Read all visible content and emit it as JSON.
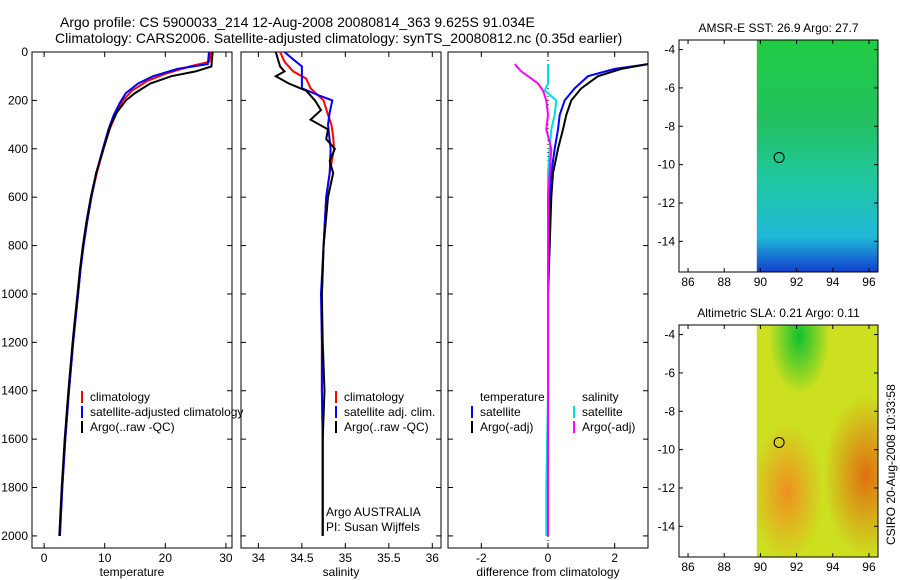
{
  "title_line1": "Argo profile: CS 5900033_214 12-Aug-2008 20080814_363 9.625S 91.034E",
  "title_line2": "Climatology: CARS2006. Satellite-adjusted climatology: synTS_20080812.nc (0.35d earlier)",
  "footer": {
    "argo_line1": "Argo AUSTRALIA",
    "argo_line2": "PI: Susan Wijffels",
    "csiro_stamp": "CSIRO 20-Aug-2008 10:33:58"
  },
  "colors": {
    "climatology": "#ff0000",
    "satellite": "#0000ff",
    "argo": "#000000",
    "salinity_sat": "#00dddd",
    "salinity_argo": "#ff00ff"
  },
  "chart_data": [
    {
      "id": "temperature",
      "type": "line",
      "xlabel": "temperature",
      "xlim": [
        -2,
        31
      ],
      "ylim": [
        0,
        2050
      ],
      "xticks": [
        0,
        10,
        20,
        30
      ],
      "yticks": [
        0,
        200,
        400,
        600,
        800,
        1000,
        1200,
        1400,
        1600,
        1800,
        2000
      ],
      "legend": [
        "climatology",
        "satellite-adjusted climatology",
        "Argo(..raw -QC)"
      ],
      "series": [
        {
          "name": "climatology",
          "color": "#ff0000",
          "depth": [
            0,
            40,
            60,
            90,
            120,
            160,
            200,
            260,
            320,
            400,
            500,
            600,
            700,
            800,
            900,
            1000,
            1100,
            1200,
            1400,
            1600,
            1800,
            2000
          ],
          "values": [
            27.5,
            27.3,
            24,
            20,
            17,
            14.5,
            13,
            11.8,
            10.8,
            9.8,
            8.7,
            7.8,
            7.1,
            6.5,
            6,
            5.6,
            5.2,
            4.8,
            4.1,
            3.5,
            3,
            2.6
          ]
        },
        {
          "name": "satellite-adjusted climatology",
          "color": "#0000ff",
          "depth": [
            0,
            50,
            70,
            100,
            130,
            170,
            210,
            260,
            320,
            400,
            500,
            600,
            700,
            800,
            900,
            1000,
            1100,
            1200,
            1400,
            1600,
            1800,
            2000
          ],
          "values": [
            27.2,
            27,
            22,
            18,
            15.5,
            13.5,
            12.5,
            11.5,
            10.6,
            9.7,
            8.6,
            7.8,
            7.1,
            6.5,
            6,
            5.6,
            5.2,
            4.8,
            4.1,
            3.5,
            3,
            2.6
          ]
        },
        {
          "name": "Argo(..raw -QC)",
          "color": "#000000",
          "depth": [
            0,
            60,
            80,
            100,
            130,
            170,
            200,
            250,
            300,
            400,
            500,
            600,
            700,
            800,
            900,
            1000,
            1100,
            1200,
            1400,
            1600,
            1800,
            2000
          ],
          "values": [
            27.8,
            27.6,
            25,
            21,
            17.5,
            15,
            13.5,
            12,
            11,
            9.8,
            8.6,
            7.7,
            7,
            6.4,
            5.9,
            5.5,
            5.1,
            4.7,
            4,
            3.4,
            2.9,
            2.5
          ]
        }
      ]
    },
    {
      "id": "salinity",
      "type": "line",
      "xlabel": "salinity",
      "xlim": [
        33.8,
        36.1
      ],
      "ylim": [
        0,
        2050
      ],
      "xticks": [
        34,
        34.5,
        35,
        35.5,
        36
      ],
      "legend": [
        "climatology",
        "satellite adj. clim.",
        "Argo(..raw -QC)"
      ],
      "series": [
        {
          "name": "climatology",
          "color": "#ff0000",
          "depth": [
            0,
            40,
            80,
            110,
            150,
            200,
            260,
            300,
            350,
            400,
            500,
            600,
            800,
            1000,
            1200,
            1400,
            1600,
            1800,
            2000
          ],
          "values": [
            34.25,
            34.3,
            34.4,
            34.55,
            34.6,
            34.75,
            34.8,
            34.84,
            34.86,
            34.87,
            34.82,
            34.78,
            34.75,
            34.73,
            34.73,
            34.73,
            34.74,
            34.74,
            34.74
          ]
        },
        {
          "name": "satellite adj. clim.",
          "color": "#0000ff",
          "depth": [
            0,
            30,
            60,
            100,
            150,
            180,
            200,
            250,
            300,
            400,
            500,
            600,
            800,
            1000,
            1200,
            1400,
            1600,
            1800,
            2000
          ],
          "values": [
            34.3,
            34.4,
            34.5,
            34.5,
            34.5,
            34.7,
            34.85,
            34.82,
            34.8,
            34.83,
            34.82,
            34.78,
            34.75,
            34.72,
            34.73,
            34.73,
            34.74,
            34.74,
            34.74
          ]
        },
        {
          "name": "Argo(..raw -QC)",
          "color": "#000000",
          "depth": [
            0,
            60,
            80,
            100,
            130,
            160,
            200,
            240,
            280,
            320,
            360,
            400,
            450,
            500,
            600,
            800,
            1000,
            1200,
            1400,
            1600,
            1800,
            2000
          ],
          "values": [
            34.2,
            34.25,
            34.3,
            34.2,
            34.35,
            34.55,
            34.65,
            34.72,
            34.6,
            34.8,
            34.78,
            34.88,
            34.82,
            34.86,
            34.8,
            34.75,
            34.73,
            34.74,
            34.76,
            34.74,
            34.74,
            34.74
          ]
        }
      ]
    },
    {
      "id": "difference",
      "type": "line",
      "xlabel": "difference from climatology",
      "xlim": [
        -3,
        3
      ],
      "ylim": [
        0,
        2050
      ],
      "xticks": [
        -2,
        0,
        2
      ],
      "legend_left_title": "temperature",
      "legend_right_title": "salinity",
      "legend": [
        "satellite",
        "Argo(-adj)",
        "satellite",
        "Argo(-adj)"
      ],
      "series": [
        {
          "name": "temperature satellite",
          "color": "#0000ff",
          "depth": [
            50,
            70,
            100,
            150,
            200,
            260,
            320,
            400,
            500,
            600,
            800,
            1000,
            1400,
            2000
          ],
          "values": [
            3,
            2,
            1.2,
            0.8,
            0.5,
            0.35,
            0.3,
            0.2,
            0.1,
            0.05,
            0,
            0,
            0,
            0
          ]
        },
        {
          "name": "temperature Argo(-adj)",
          "color": "#000000",
          "depth": [
            50,
            70,
            100,
            150,
            200,
            260,
            320,
            400,
            500,
            600,
            800,
            1000,
            1400,
            2000
          ],
          "values": [
            3,
            2.2,
            1.5,
            1.0,
            0.7,
            0.55,
            0.45,
            0.3,
            0.15,
            0.1,
            0.05,
            0,
            0,
            0
          ]
        },
        {
          "name": "salinity satellite",
          "color": "#00dddd",
          "depth": [
            50,
            80,
            100,
            130,
            160,
            200,
            260,
            320,
            400,
            500,
            600,
            800,
            1000,
            1400,
            1800,
            2000
          ],
          "values": [
            0,
            0,
            0,
            0,
            -0.1,
            0.25,
            0.2,
            0.1,
            0.05,
            0,
            0,
            0,
            0,
            0,
            -0.05,
            -0.05
          ]
        },
        {
          "name": "salinity Argo(-adj)",
          "color": "#ff00ff",
          "depth": [
            50,
            80,
            100,
            130,
            160,
            200,
            260,
            320,
            400,
            500,
            600,
            800,
            1000,
            1400,
            1800,
            2000
          ],
          "values": [
            -1,
            -0.8,
            -0.6,
            -0.3,
            -0.15,
            -0.05,
            0,
            -0.05,
            0.1,
            0.05,
            0,
            0,
            0,
            0,
            0,
            0
          ]
        }
      ]
    },
    {
      "id": "sst_map",
      "type": "heatmap",
      "title": "AMSR-E SST: 26.9 Argo: 27.7",
      "xlim": [
        85.5,
        96.5
      ],
      "ylim": [
        -15.6,
        -3.5
      ],
      "xticks": [
        86,
        88,
        90,
        92,
        94,
        96
      ],
      "yticks": [
        -4,
        -6,
        -8,
        -10,
        -12,
        -14
      ],
      "data_region_x": [
        89.8,
        96.5
      ],
      "marker": [
        91.034,
        -9.625
      ]
    },
    {
      "id": "sla_map",
      "type": "heatmap",
      "title": "Altimetric SLA: 0.21 Argo: 0.11",
      "xlim": [
        85.5,
        96.5
      ],
      "ylim": [
        -15.6,
        -3.5
      ],
      "xticks": [
        86,
        88,
        90,
        92,
        94,
        96
      ],
      "yticks": [
        -4,
        -6,
        -8,
        -10,
        -12,
        -14
      ],
      "data_region_x": [
        89.8,
        96.5
      ],
      "marker": [
        91.034,
        -9.625
      ]
    }
  ]
}
